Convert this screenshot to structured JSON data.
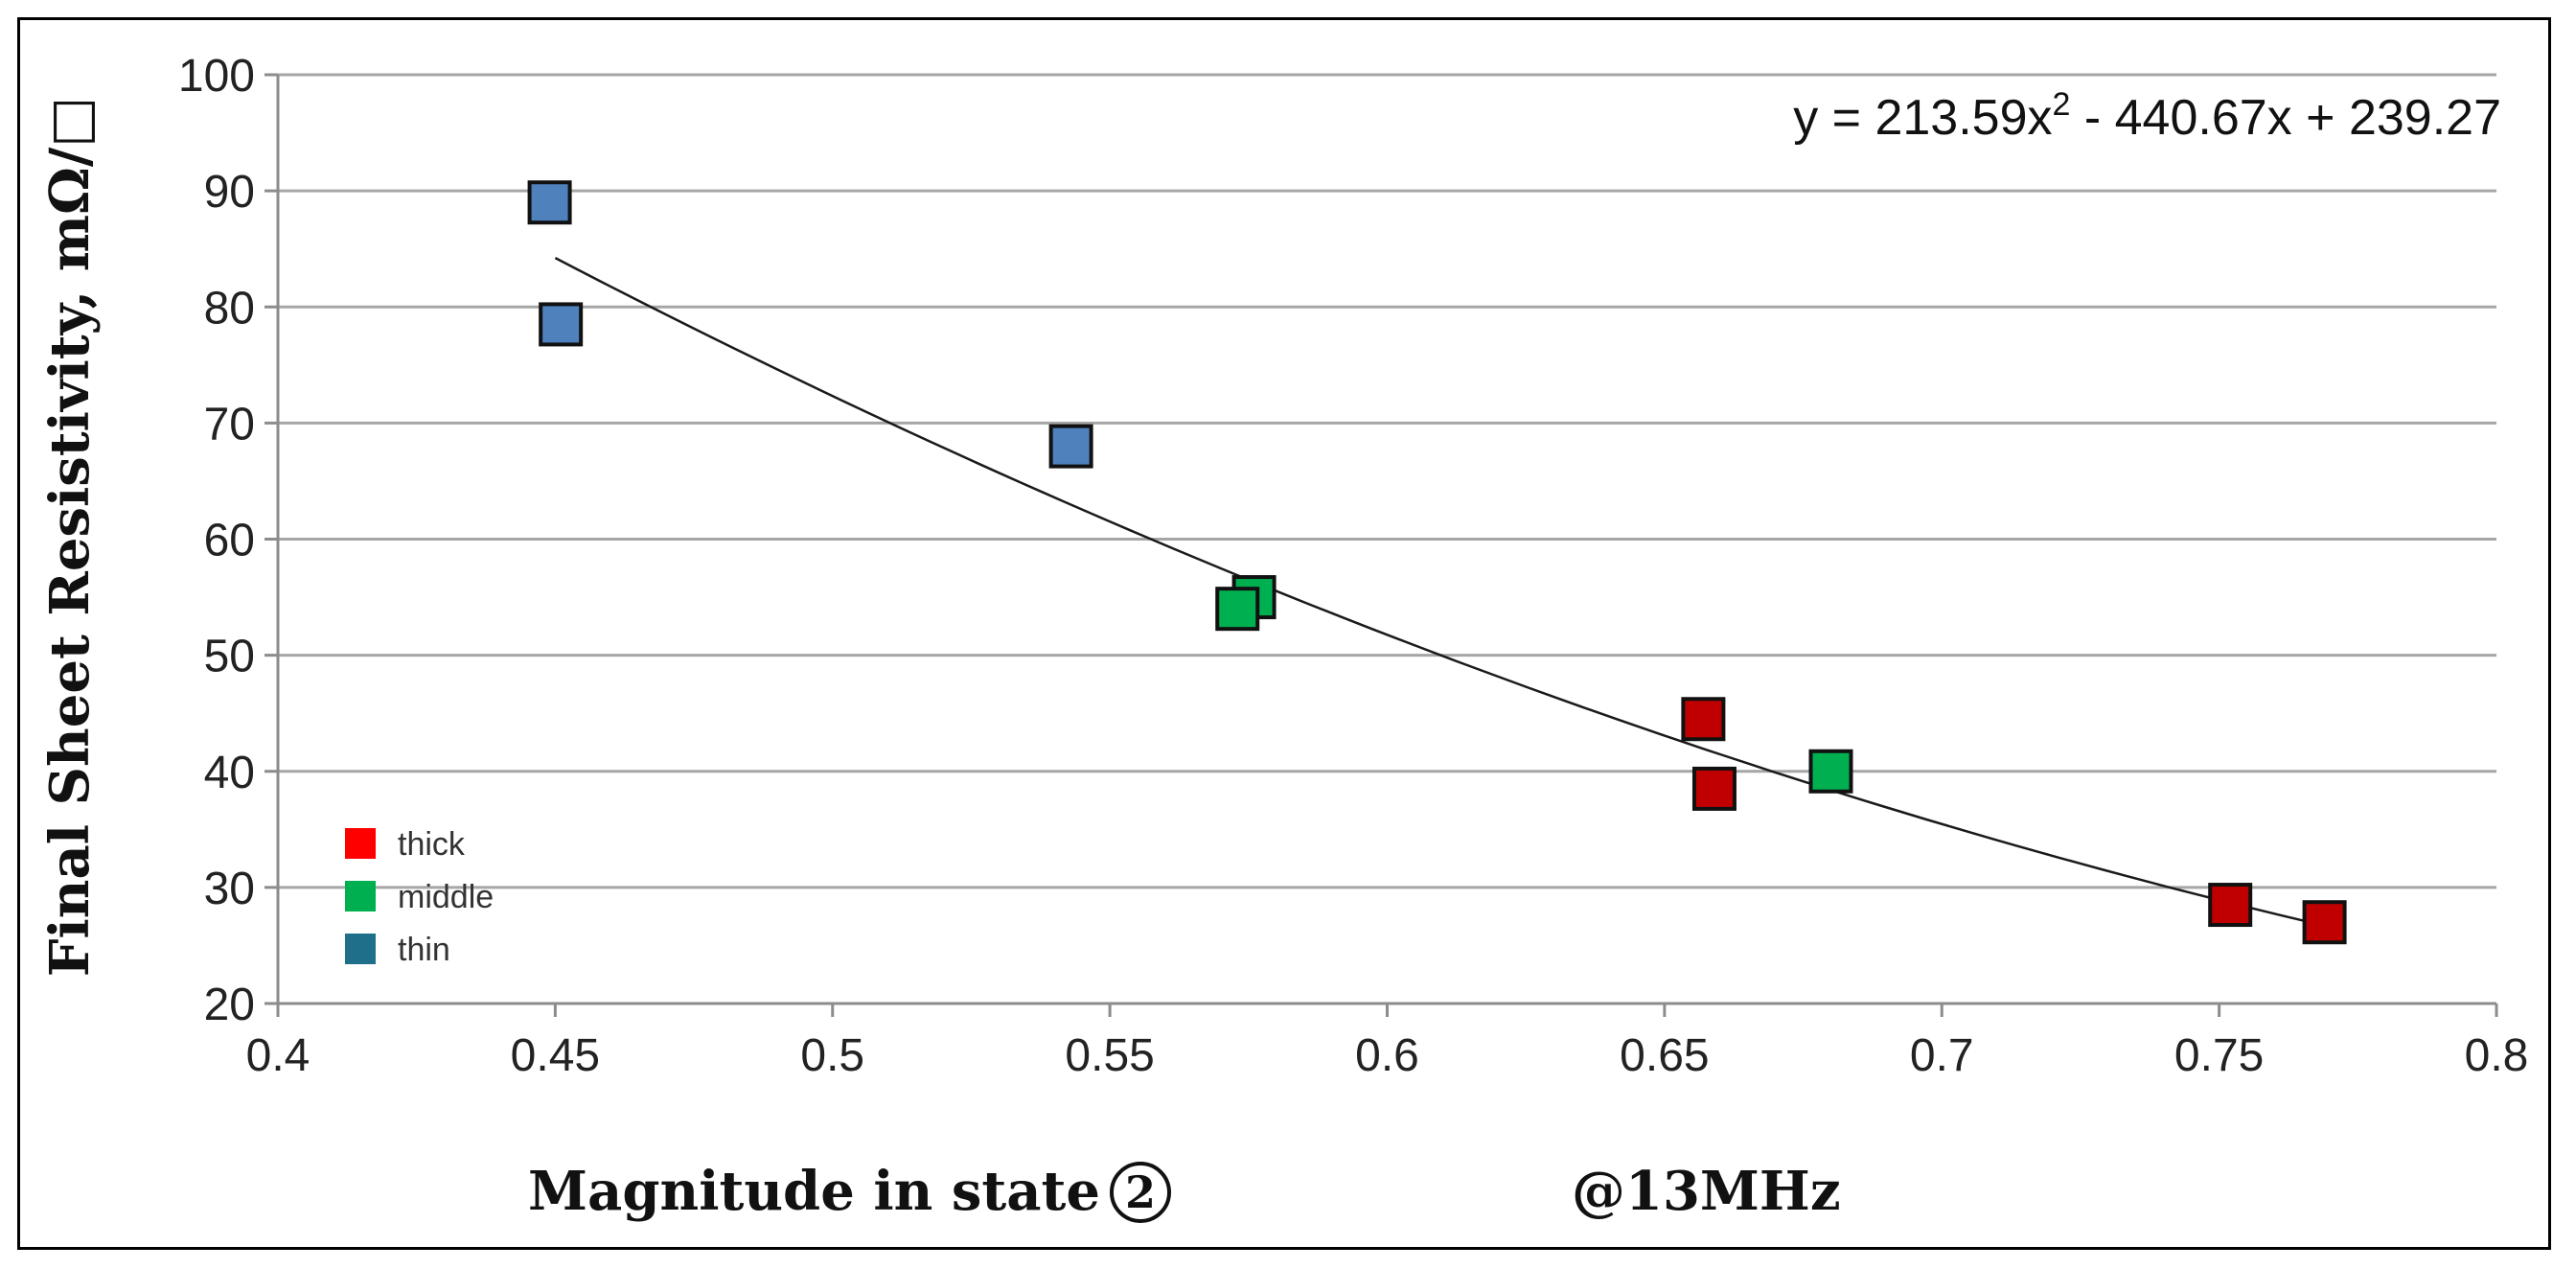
{
  "chart_data": {
    "type": "scatter",
    "title": "",
    "xlabel": "Magnitude in state",
    "xlabel_circle": "2",
    "xlabel_suffix": "@13MHz",
    "ylabel": "Final Sheet Resistivity, mΩ/□",
    "xlim": [
      0.4,
      0.8
    ],
    "ylim": [
      20,
      100
    ],
    "xticks": [
      "0.4",
      "0.45",
      "0.5",
      "0.55",
      "0.6",
      "0.65",
      "0.7",
      "0.75",
      "0.8"
    ],
    "yticks": [
      "20",
      "30",
      "40",
      "50",
      "60",
      "70",
      "80",
      "90",
      "100"
    ],
    "grid": "horizontal",
    "legend_position": "bottom-left",
    "series": [
      {
        "name": "thick",
        "color": "#c00000",
        "legend_color": "#ff0000",
        "points": [
          [
            0.657,
            44.5
          ],
          [
            0.659,
            38.5
          ],
          [
            0.752,
            28.5
          ],
          [
            0.769,
            27.0
          ]
        ]
      },
      {
        "name": "middle",
        "color": "#00b050",
        "legend_color": "#00b050",
        "points": [
          [
            0.576,
            55.0
          ],
          [
            0.573,
            54.0
          ],
          [
            0.68,
            40.0
          ]
        ]
      },
      {
        "name": "thin",
        "color": "#4f81bd",
        "legend_color": "#1f6f8b",
        "points": [
          [
            0.449,
            89.0
          ],
          [
            0.451,
            78.5
          ],
          [
            0.543,
            68.0
          ]
        ]
      }
    ],
    "trendline": {
      "type": "polynomial",
      "coefficients": [
        213.59,
        -440.67,
        239.27
      ],
      "x_range": [
        0.45,
        0.769
      ],
      "equation_prefix": "y = 213.59x",
      "equation_exponent": "2",
      "equation_suffix": " - 440.67x + 239.27"
    }
  }
}
